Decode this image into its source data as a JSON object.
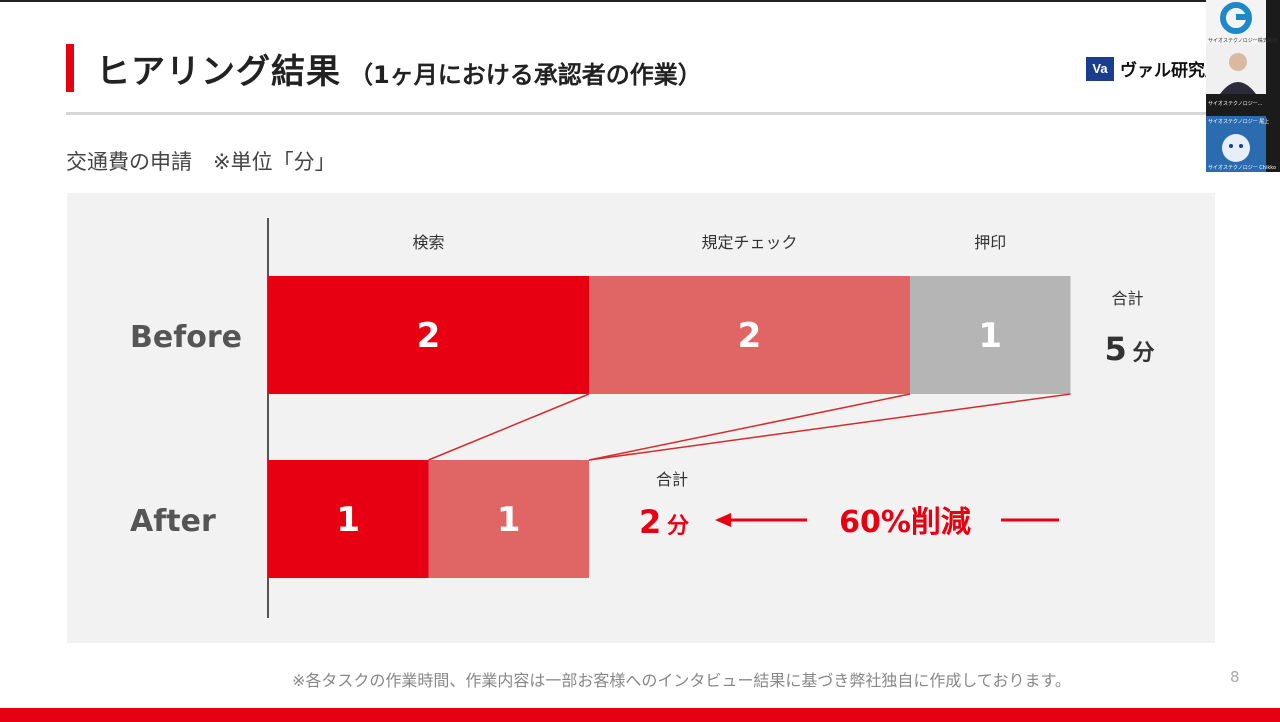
{
  "slide": {
    "title": "ヒアリング結果",
    "title_sub": "（1ヶ月における承認者の作業）",
    "logo_mark": "Va",
    "logo_text": "ヴァル研究所",
    "subtitle": "交通費の申請　※単位「分」",
    "footnote": "※各タスクの作業時間、作業内容は一部お客様へのインタビュー結果に基づき弊社独自に作成しております。",
    "page_number": "8"
  },
  "chart_data": {
    "type": "bar",
    "orientation": "horizontal",
    "stacked": true,
    "categories": [
      "Before",
      "After"
    ],
    "series": [
      {
        "name": "検索",
        "values": [
          2,
          1
        ],
        "color": "#e60012"
      },
      {
        "name": "規定チェック",
        "values": [
          2,
          1
        ],
        "color": "#e06666"
      },
      {
        "name": "押印",
        "values": [
          1,
          0
        ],
        "color": "#b5b5b5"
      }
    ],
    "totals": [
      {
        "label": "合計",
        "value": 5,
        "unit": "分",
        "color": "#333333"
      },
      {
        "label": "合計",
        "value": 2,
        "unit": "分",
        "color": "#e60012"
      }
    ],
    "annotation": "60%削減",
    "xlim": [
      0,
      5
    ]
  },
  "meeting": {
    "participants": [
      {
        "name": "サイオステクノロジー株式会社"
      },
      {
        "name": "サイオステクノロジー..."
      },
      {
        "name": "サイオステクノロジー 尾上"
      },
      {
        "name": "サイオステクノロジー Chikko"
      }
    ]
  },
  "colors": {
    "accent": "#e60012",
    "light_red": "#e06666",
    "gray": "#b5b5b5"
  }
}
